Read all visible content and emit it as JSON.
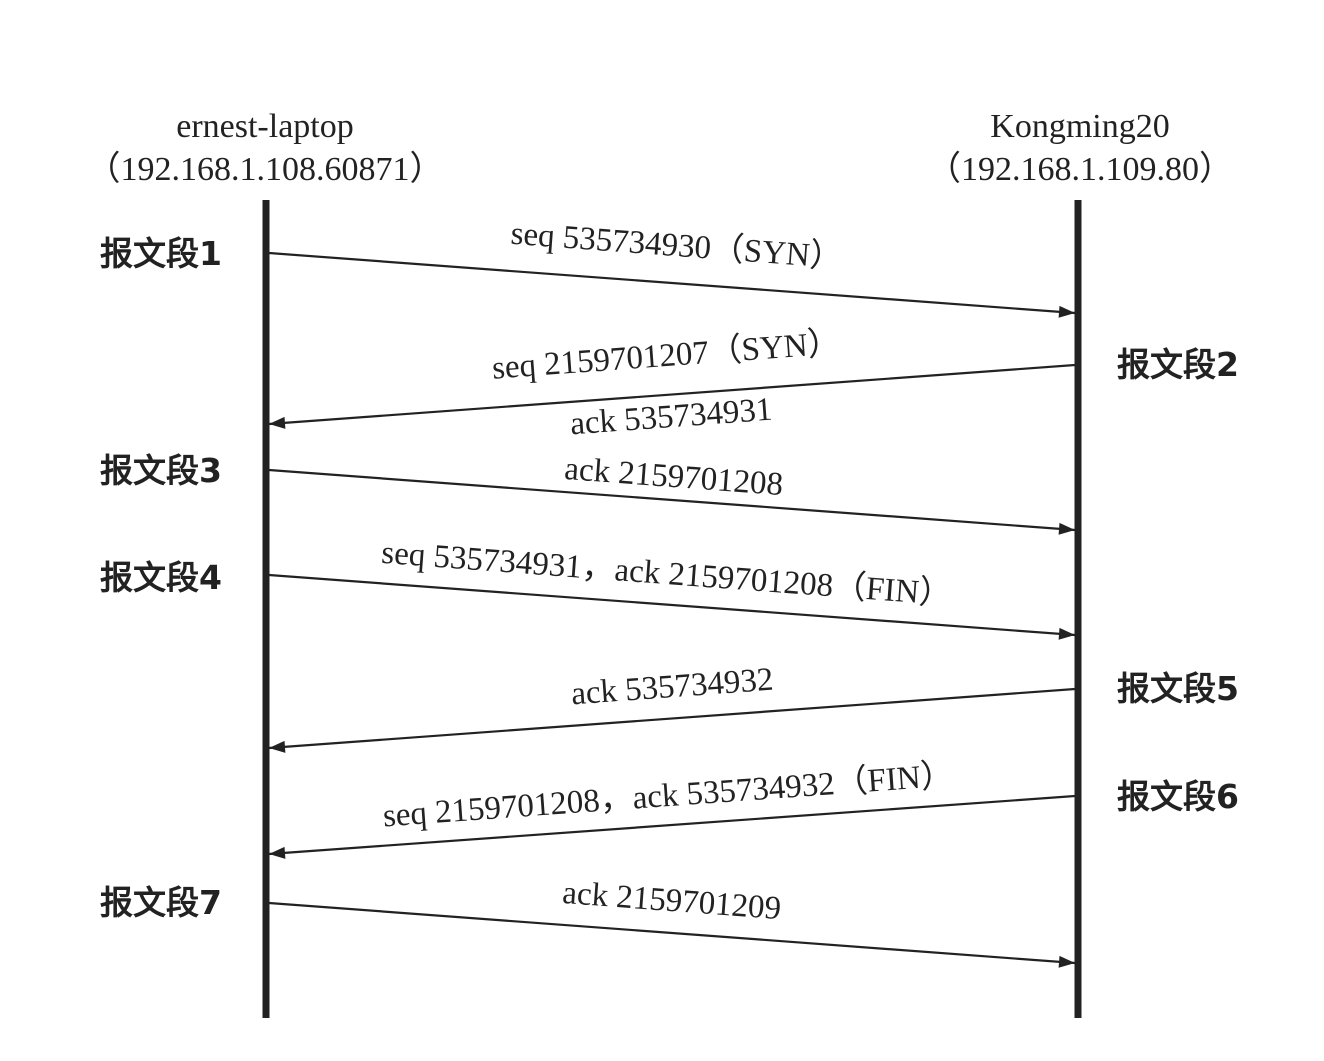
{
  "hosts": {
    "left": {
      "name": "ernest-laptop",
      "address": "（192.168.1.108.60871）"
    },
    "right": {
      "name": "Kongming20",
      "address": "（192.168.1.109.80）"
    }
  },
  "segments": [
    {
      "label": "报文段1",
      "direction": "left-to-right",
      "lines": [
        "seq 535734930（SYN）"
      ]
    },
    {
      "label": "报文段2",
      "direction": "right-to-left",
      "lines": [
        "seq 2159701207（SYN）",
        "ack 535734931"
      ]
    },
    {
      "label": "报文段3",
      "direction": "left-to-right",
      "lines": [
        "ack 2159701208"
      ]
    },
    {
      "label": "报文段4",
      "direction": "left-to-right",
      "lines": [
        "seq 535734931，ack 2159701208（FIN）"
      ]
    },
    {
      "label": "报文段5",
      "direction": "right-to-left",
      "lines": [
        "ack 535734932"
      ]
    },
    {
      "label": "报文段6",
      "direction": "right-to-left",
      "lines": [
        "seq 2159701208，ack 535734932（FIN）"
      ]
    },
    {
      "label": "报文段7",
      "direction": "left-to-right",
      "lines": [
        "ack 2159701209"
      ]
    }
  ]
}
